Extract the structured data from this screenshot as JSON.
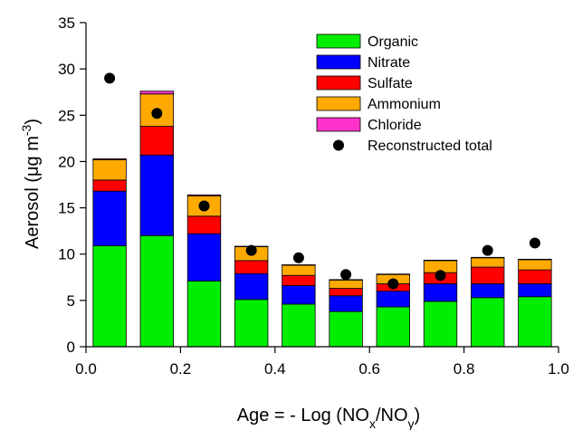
{
  "chart_data": {
    "type": "bar",
    "stacked": true,
    "xlabel": {
      "prefix": "Age = - Log (NO",
      "sub1": "x",
      "middle": "/NO",
      "sub2": "y",
      "suffix": ")"
    },
    "ylabel": {
      "prefix": "Aerosol (",
      "mu": "μ",
      "unit": "g m",
      "sup": "-3",
      "suffix": ")"
    },
    "xlim": [
      0.0,
      1.0
    ],
    "ylim": [
      0,
      35
    ],
    "xticks": [
      0.0,
      0.2,
      0.4,
      0.6,
      0.8,
      1.0
    ],
    "xtick_labels": [
      "0.0",
      "0.2",
      "0.4",
      "0.6",
      "0.8",
      "1.0"
    ],
    "yticks": [
      0,
      5,
      10,
      15,
      20,
      25,
      30,
      35
    ],
    "ytick_labels": [
      "0",
      "5",
      "10",
      "15",
      "20",
      "25",
      "30",
      "35"
    ],
    "bar_width": 0.07,
    "x": [
      0.05,
      0.15,
      0.25,
      0.35,
      0.45,
      0.55,
      0.65,
      0.75,
      0.85,
      0.95
    ],
    "series": [
      {
        "name": "Organic",
        "color": "#00ee00",
        "values": [
          10.9,
          12.0,
          7.1,
          5.1,
          4.6,
          3.8,
          4.3,
          4.9,
          5.3,
          5.4
        ]
      },
      {
        "name": "Nitrate",
        "color": "#0000ff",
        "values": [
          5.9,
          8.7,
          5.1,
          2.8,
          2.0,
          1.7,
          1.7,
          1.9,
          1.5,
          1.4
        ]
      },
      {
        "name": "Sulfate",
        "color": "#ff0000",
        "values": [
          1.2,
          3.1,
          1.9,
          1.4,
          1.1,
          0.8,
          0.8,
          1.2,
          1.8,
          1.5
        ]
      },
      {
        "name": "Ammonium",
        "color": "#ffaa00",
        "values": [
          2.2,
          3.5,
          2.2,
          1.5,
          1.1,
          0.9,
          1.0,
          1.3,
          1.0,
          1.1
        ]
      },
      {
        "name": "Chloride",
        "color": "#ff33cc",
        "values": [
          0.1,
          0.3,
          0.1,
          0.05,
          0.05,
          0.05,
          0.05,
          0.05,
          0.05,
          0.05
        ]
      }
    ],
    "reconstructed_total": {
      "name": "Reconstructed total",
      "color": "#000000",
      "values": [
        29.0,
        25.2,
        15.2,
        10.4,
        9.6,
        7.8,
        6.8,
        7.7,
        10.4,
        11.2
      ]
    },
    "legend_position": "top-right",
    "grid": false
  }
}
